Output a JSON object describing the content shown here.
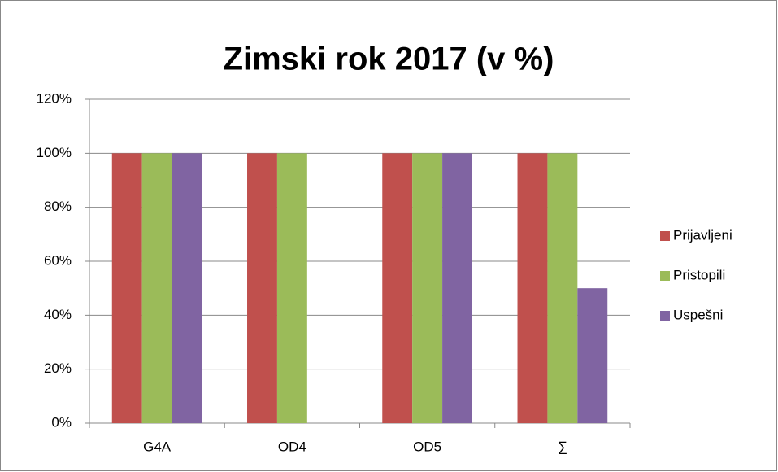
{
  "chart_data": {
    "type": "bar",
    "title": "Zimski rok 2017 (v %)",
    "categories": [
      "G4A",
      "OD4",
      "OD5",
      "∑"
    ],
    "series": [
      {
        "name": "Prijavljeni",
        "color": "#c0504d",
        "values": [
          100,
          100,
          100,
          100
        ]
      },
      {
        "name": "Pristopili",
        "color": "#9bbb59",
        "values": [
          100,
          100,
          100,
          100
        ]
      },
      {
        "name": "Uspešni",
        "color": "#8064a2",
        "values": [
          100,
          0,
          100,
          50
        ]
      }
    ],
    "ylim": [
      0,
      120
    ],
    "yticks": [
      {
        "value": 0,
        "label": "0%"
      },
      {
        "value": 20,
        "label": "20%"
      },
      {
        "value": 40,
        "label": "40%"
      },
      {
        "value": 60,
        "label": "60%"
      },
      {
        "value": 80,
        "label": "80%"
      },
      {
        "value": 100,
        "label": "100%"
      },
      {
        "value": 120,
        "label": "120%"
      }
    ],
    "grid": true,
    "legend": "right"
  }
}
